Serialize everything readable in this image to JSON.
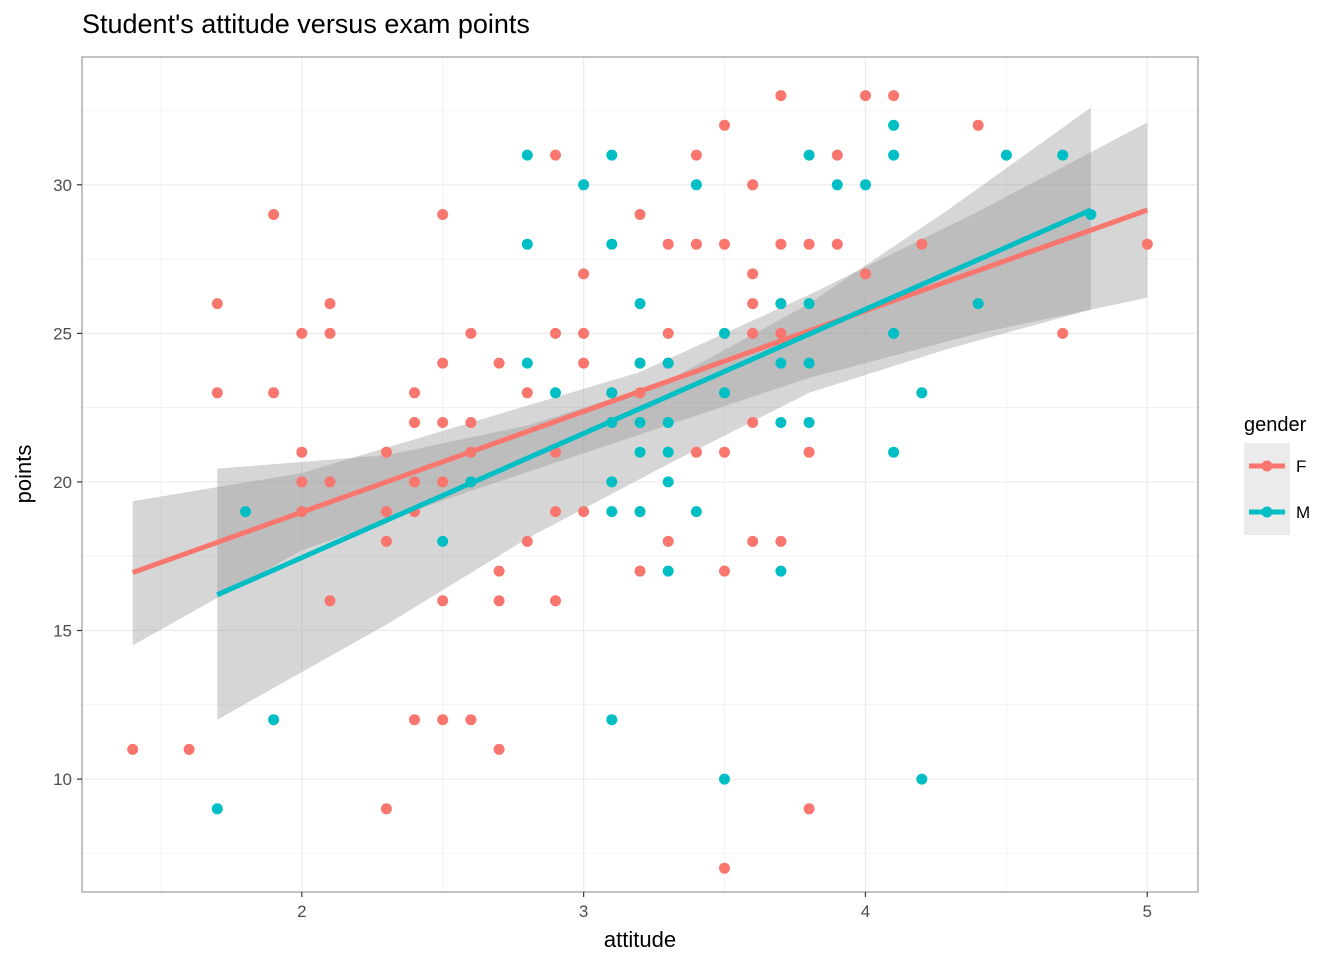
{
  "chart_data": {
    "type": "scatter",
    "title": "Student's attitude versus exam points",
    "xlabel": "attitude",
    "ylabel": "points",
    "xlim": [
      1.22,
      5.18
    ],
    "ylim": [
      6.2,
      34.3
    ],
    "x_ticks": [
      2,
      3,
      4,
      5
    ],
    "y_ticks": [
      10,
      15,
      20,
      25,
      30
    ],
    "grid": true,
    "legend": {
      "title": "gender",
      "position": "right",
      "entries": [
        {
          "label": "F",
          "color": "#F8766D"
        },
        {
          "label": "M",
          "color": "#00BFC4"
        }
      ]
    },
    "series": [
      {
        "name": "F",
        "color": "#F8766D",
        "points": [
          [
            1.4,
            11
          ],
          [
            1.6,
            11
          ],
          [
            1.7,
            26
          ],
          [
            1.7,
            23
          ],
          [
            1.9,
            29
          ],
          [
            1.9,
            23
          ],
          [
            2.0,
            25
          ],
          [
            2.0,
            21
          ],
          [
            2.0,
            20
          ],
          [
            2.0,
            19
          ],
          [
            2.1,
            26
          ],
          [
            2.1,
            25
          ],
          [
            2.1,
            20
          ],
          [
            2.1,
            16
          ],
          [
            2.3,
            21
          ],
          [
            2.3,
            19
          ],
          [
            2.3,
            18
          ],
          [
            2.3,
            9
          ],
          [
            2.4,
            23
          ],
          [
            2.4,
            22
          ],
          [
            2.4,
            20
          ],
          [
            2.4,
            19
          ],
          [
            2.4,
            12
          ],
          [
            2.5,
            29
          ],
          [
            2.5,
            24
          ],
          [
            2.5,
            22
          ],
          [
            2.5,
            20
          ],
          [
            2.5,
            16
          ],
          [
            2.5,
            12
          ],
          [
            2.6,
            25
          ],
          [
            2.6,
            22
          ],
          [
            2.6,
            21
          ],
          [
            2.6,
            20
          ],
          [
            2.6,
            12
          ],
          [
            2.7,
            24
          ],
          [
            2.7,
            17
          ],
          [
            2.7,
            16
          ],
          [
            2.7,
            11
          ],
          [
            2.8,
            23
          ],
          [
            2.8,
            18
          ],
          [
            2.9,
            31
          ],
          [
            2.9,
            25
          ],
          [
            2.9,
            21
          ],
          [
            2.9,
            19
          ],
          [
            2.9,
            16
          ],
          [
            3.0,
            27
          ],
          [
            3.0,
            25
          ],
          [
            3.0,
            24
          ],
          [
            3.0,
            19
          ],
          [
            3.1,
            23
          ],
          [
            3.1,
            22
          ],
          [
            3.2,
            29
          ],
          [
            3.2,
            24
          ],
          [
            3.2,
            23
          ],
          [
            3.2,
            19
          ],
          [
            3.2,
            17
          ],
          [
            3.3,
            28
          ],
          [
            3.3,
            25
          ],
          [
            3.3,
            24
          ],
          [
            3.3,
            18
          ],
          [
            3.4,
            31
          ],
          [
            3.4,
            28
          ],
          [
            3.4,
            21
          ],
          [
            3.5,
            32
          ],
          [
            3.5,
            28
          ],
          [
            3.5,
            21
          ],
          [
            3.5,
            17
          ],
          [
            3.5,
            7
          ],
          [
            3.6,
            30
          ],
          [
            3.6,
            27
          ],
          [
            3.6,
            26
          ],
          [
            3.6,
            25
          ],
          [
            3.6,
            22
          ],
          [
            3.6,
            18
          ],
          [
            3.7,
            33
          ],
          [
            3.7,
            28
          ],
          [
            3.7,
            26
          ],
          [
            3.7,
            25
          ],
          [
            3.7,
            18
          ],
          [
            3.8,
            28
          ],
          [
            3.8,
            21
          ],
          [
            3.8,
            9
          ],
          [
            3.9,
            31
          ],
          [
            3.9,
            28
          ],
          [
            4.0,
            33
          ],
          [
            4.0,
            27
          ],
          [
            4.1,
            33
          ],
          [
            4.2,
            28
          ],
          [
            4.4,
            32
          ],
          [
            4.7,
            25
          ],
          [
            5.0,
            28
          ]
        ],
        "fit": {
          "x": [
            1.4,
            5.0
          ],
          "y": [
            16.95,
            29.15
          ]
        },
        "ci": {
          "x": [
            1.4,
            2.0,
            2.6,
            3.2,
            3.8,
            4.4,
            5.0
          ],
          "lower": [
            14.5,
            17.7,
            19.7,
            21.6,
            23.5,
            25.0,
            26.2
          ],
          "upper": [
            19.35,
            20.3,
            22.0,
            23.7,
            26.3,
            29.1,
            32.1
          ]
        }
      },
      {
        "name": "M",
        "color": "#00BFC4",
        "points": [
          [
            1.7,
            9
          ],
          [
            1.8,
            19
          ],
          [
            1.9,
            12
          ],
          [
            2.5,
            18
          ],
          [
            2.6,
            20
          ],
          [
            2.8,
            31
          ],
          [
            2.8,
            28
          ],
          [
            2.8,
            24
          ],
          [
            2.9,
            23
          ],
          [
            3.0,
            30
          ],
          [
            3.1,
            31
          ],
          [
            3.1,
            28
          ],
          [
            3.1,
            23
          ],
          [
            3.1,
            22
          ],
          [
            3.1,
            20
          ],
          [
            3.1,
            19
          ],
          [
            3.1,
            12
          ],
          [
            3.2,
            26
          ],
          [
            3.2,
            24
          ],
          [
            3.2,
            22
          ],
          [
            3.2,
            21
          ],
          [
            3.2,
            19
          ],
          [
            3.3,
            24
          ],
          [
            3.3,
            22
          ],
          [
            3.3,
            21
          ],
          [
            3.3,
            20
          ],
          [
            3.3,
            17
          ],
          [
            3.4,
            30
          ],
          [
            3.4,
            19
          ],
          [
            3.5,
            25
          ],
          [
            3.5,
            23
          ],
          [
            3.5,
            10
          ],
          [
            3.7,
            26
          ],
          [
            3.7,
            24
          ],
          [
            3.7,
            22
          ],
          [
            3.7,
            17
          ],
          [
            3.8,
            31
          ],
          [
            3.8,
            26
          ],
          [
            3.8,
            24
          ],
          [
            3.8,
            22
          ],
          [
            3.9,
            30
          ],
          [
            4.0,
            30
          ],
          [
            4.1,
            32
          ],
          [
            4.1,
            31
          ],
          [
            4.1,
            25
          ],
          [
            4.1,
            21
          ],
          [
            4.2,
            23
          ],
          [
            4.2,
            10
          ],
          [
            4.4,
            26
          ],
          [
            4.5,
            31
          ],
          [
            4.7,
            31
          ],
          [
            4.8,
            29
          ]
        ],
        "fit": {
          "x": [
            1.7,
            4.8
          ],
          "y": [
            16.2,
            29.15
          ]
        },
        "ci": {
          "x": [
            1.7,
            2.3,
            2.8,
            3.3,
            3.8,
            4.3,
            4.8
          ],
          "lower": [
            12.0,
            15.2,
            18.1,
            20.6,
            23.0,
            24.5,
            25.8
          ],
          "upper": [
            20.45,
            20.9,
            21.9,
            23.4,
            26.0,
            29.2,
            32.6
          ]
        }
      }
    ]
  }
}
